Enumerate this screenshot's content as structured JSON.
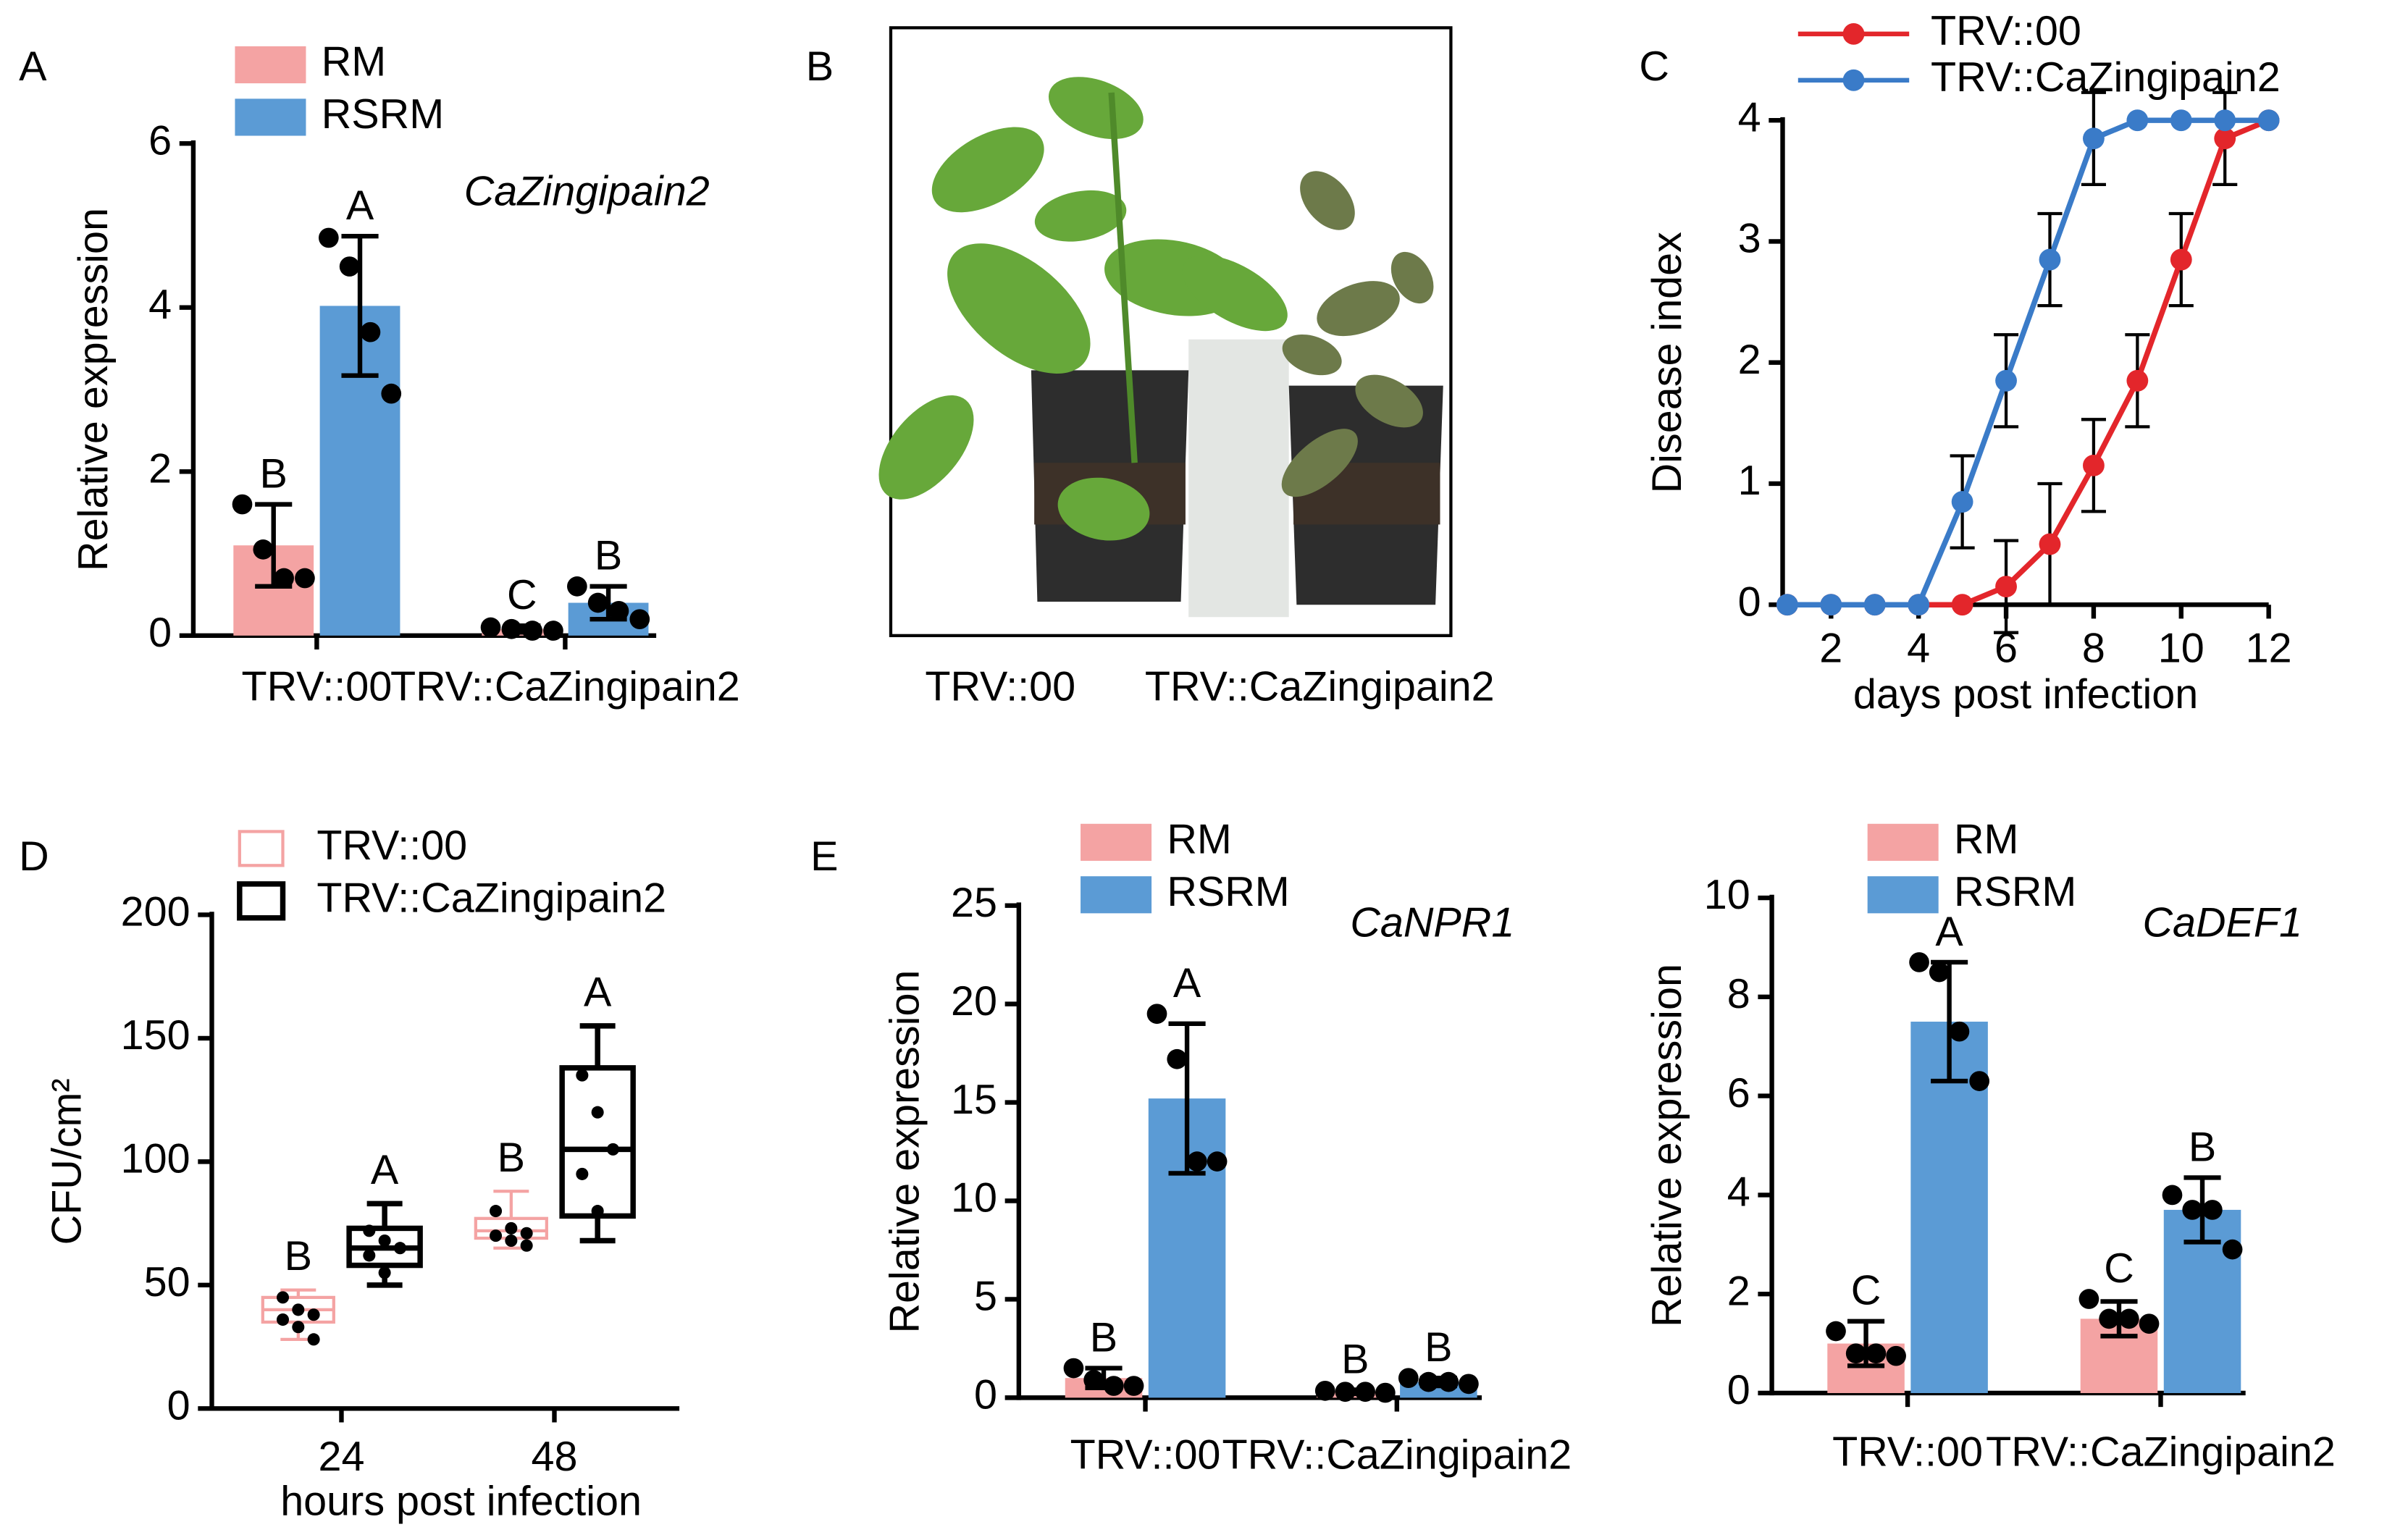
{
  "chart_data": [
    {
      "panel": "A",
      "type": "bar",
      "ylabel": "Relative expression",
      "annotation": "CaZingipain2",
      "categories": [
        "TRV::00",
        "TRV::CaZingipain2"
      ],
      "ylim": [
        0,
        6
      ],
      "yticks": [
        0,
        2,
        4,
        6
      ],
      "series": [
        {
          "name": "RM",
          "color": "#f4a3a3",
          "values": [
            1.1,
            0.08
          ],
          "errors": [
            0.5,
            0.04
          ],
          "points": [
            [
              1.6,
              1.05,
              0.7,
              0.7
            ],
            [
              0.1,
              0.08,
              0.06,
              0.06
            ]
          ],
          "letters": [
            "B",
            "C"
          ]
        },
        {
          "name": "RSRM",
          "color": "#5b9bd5",
          "values": [
            4.02,
            0.4
          ],
          "errors": [
            0.85,
            0.2
          ],
          "points": [
            [
              4.85,
              4.5,
              3.7,
              2.95
            ],
            [
              0.6,
              0.4,
              0.3,
              0.2
            ]
          ],
          "letters": [
            "A",
            "B"
          ]
        }
      ]
    },
    {
      "panel": "B",
      "type": "image",
      "labels": [
        "TRV::00",
        "TRV::CaZingipain2"
      ]
    },
    {
      "panel": "C",
      "type": "line",
      "xlabel": "days post infection",
      "ylabel": "Disease index",
      "x": [
        1,
        2,
        3,
        4,
        5,
        6,
        7,
        8,
        9,
        10,
        11,
        12
      ],
      "xlim": [
        1,
        12
      ],
      "xticks": [
        2,
        4,
        6,
        8,
        10,
        12
      ],
      "ylim": [
        0,
        4
      ],
      "yticks": [
        0,
        1,
        2,
        3,
        4
      ],
      "series": [
        {
          "name": "TRV::00",
          "color": "#e3262b",
          "values": [
            0,
            0,
            0,
            0,
            0,
            0.15,
            0.5,
            1.15,
            1.85,
            2.85,
            3.85,
            4
          ],
          "errors": [
            null,
            null,
            null,
            null,
            null,
            0.38,
            0.5,
            0.38,
            0.38,
            0.38,
            0.38,
            null
          ]
        },
        {
          "name": "TRV::CaZingipain2",
          "color": "#3a7bc8",
          "values": [
            0,
            0,
            0,
            0,
            0.85,
            1.85,
            2.85,
            3.85,
            4,
            4,
            4,
            4
          ],
          "errors": [
            null,
            null,
            null,
            null,
            0.38,
            0.38,
            0.38,
            0.38,
            null,
            null,
            null,
            null
          ]
        }
      ]
    },
    {
      "panel": "D",
      "type": "box",
      "xlabel": "hours post infection",
      "ylabel": "CFU/cm²",
      "categories": [
        "24",
        "48"
      ],
      "ylim": [
        0,
        200
      ],
      "yticks": [
        0,
        50,
        100,
        150,
        200
      ],
      "series": [
        {
          "name": "TRV::00",
          "color": "#f4a3a3",
          "min": [
            28,
            65
          ],
          "q1": [
            35,
            69
          ],
          "median": [
            40,
            72
          ],
          "q3": [
            45,
            77
          ],
          "max": [
            48,
            88
          ],
          "points": [
            [
              45,
              40,
              38,
              36,
              33,
              28
            ],
            [
              80,
              73,
              71,
              70,
              68,
              66
            ]
          ],
          "letters": [
            "B",
            "B"
          ]
        },
        {
          "name": "TRV::CaZingipain2",
          "color": "#000000",
          "min": [
            50,
            68
          ],
          "q1": [
            58,
            78
          ],
          "median": [
            65,
            105
          ],
          "q3": [
            73,
            138
          ],
          "max": [
            83,
            155
          ],
          "points": [
            [
              72,
              68,
              65,
              62,
              55
            ],
            [
              135,
              120,
              105,
              95,
              80
            ]
          ],
          "letters": [
            "A",
            "A"
          ]
        }
      ]
    },
    {
      "panel": "E",
      "type": "bar",
      "ylabel": "Relative expression",
      "annotation": "CaNPR1",
      "categories": [
        "TRV::00",
        "TRV::CaZingipain2"
      ],
      "ylim": [
        0,
        25
      ],
      "yticks": [
        0,
        5,
        10,
        15,
        20,
        25
      ],
      "series": [
        {
          "name": "RM",
          "color": "#f4a3a3",
          "values": [
            1.0,
            0.3
          ],
          "errors": [
            0.5,
            0.1
          ],
          "points": [
            [
              1.5,
              0.9,
              0.6,
              0.6
            ],
            [
              0.35,
              0.3,
              0.3,
              0.25
            ]
          ],
          "letters": [
            "B",
            "B"
          ]
        },
        {
          "name": "RSRM",
          "color": "#5b9bd5",
          "values": [
            15.2,
            0.8
          ],
          "errors": [
            3.8,
            0.2
          ],
          "points": [
            [
              19.5,
              17.2,
              12,
              12
            ],
            [
              1.0,
              0.8,
              0.8,
              0.7
            ]
          ],
          "letters": [
            "A",
            "B"
          ]
        }
      ]
    },
    {
      "type": "bar",
      "ylabel": "Relative expression",
      "annotation": "CaDEF1",
      "categories": [
        "TRV::00",
        "TRV::CaZingipain2"
      ],
      "ylim": [
        0,
        10
      ],
      "yticks": [
        0,
        2,
        4,
        6,
        8,
        10
      ],
      "series": [
        {
          "name": "RM",
          "color": "#f4a3a3",
          "values": [
            1.0,
            1.5
          ],
          "errors": [
            0.45,
            0.35
          ],
          "points": [
            [
              1.25,
              0.8,
              0.8,
              0.75
            ],
            [
              1.9,
              1.5,
              1.5,
              1.4
            ]
          ],
          "letters": [
            "C",
            "C"
          ]
        },
        {
          "name": "RSRM",
          "color": "#5b9bd5",
          "values": [
            7.5,
            3.7
          ],
          "errors": [
            1.2,
            0.65
          ],
          "points": [
            [
              8.7,
              8.5,
              7.3,
              6.3
            ],
            [
              4.0,
              3.7,
              3.7,
              2.9
            ]
          ],
          "letters": [
            "A",
            "B"
          ]
        }
      ]
    }
  ]
}
